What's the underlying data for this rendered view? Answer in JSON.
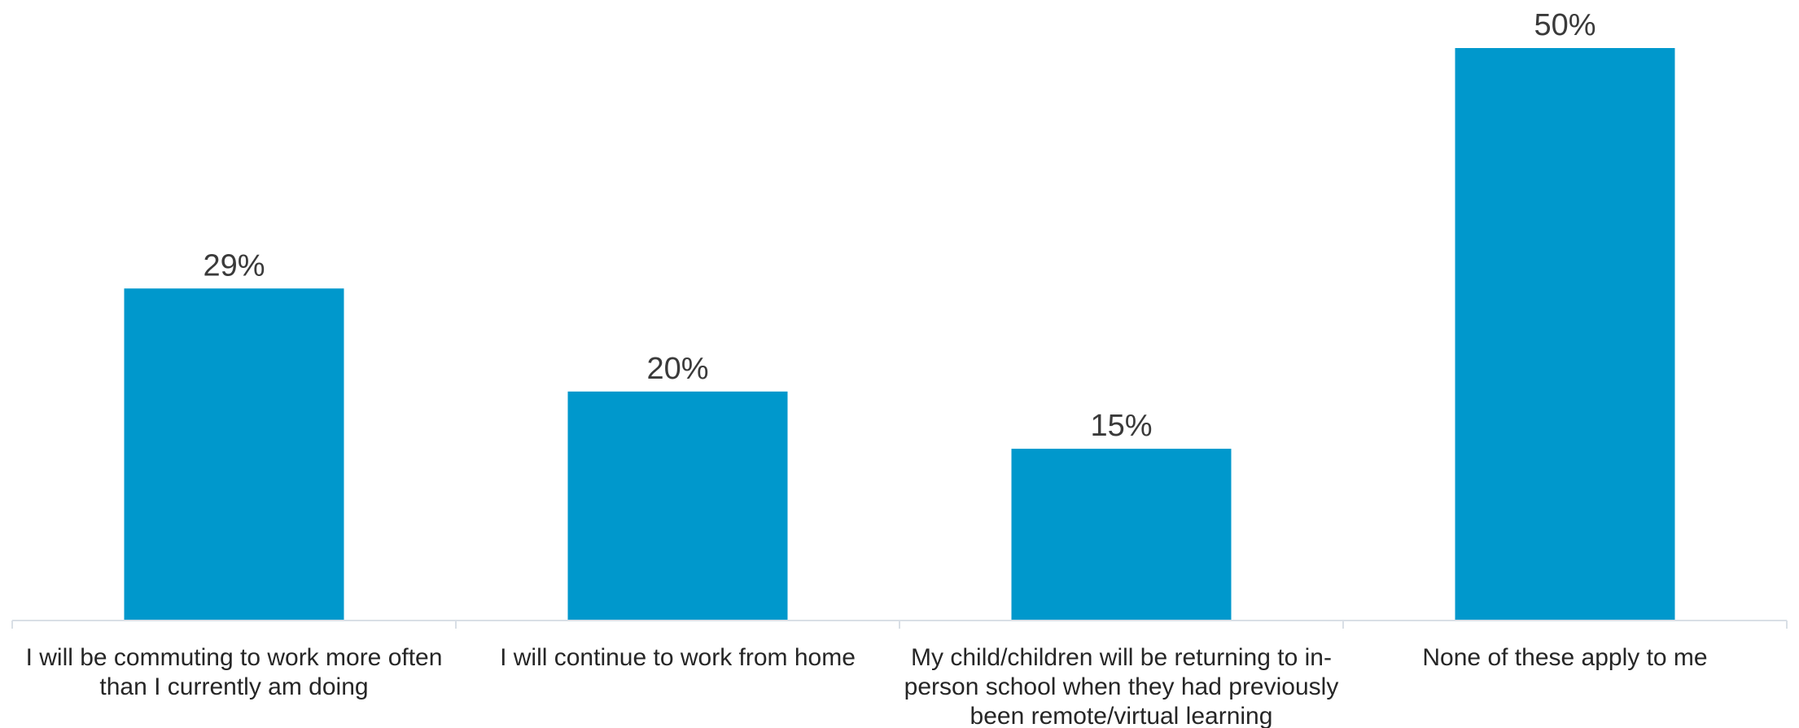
{
  "chart_data": {
    "type": "bar",
    "title": "",
    "xlabel": "",
    "ylabel": "",
    "ylim": [
      0,
      50
    ],
    "grid": false,
    "bar_color": "#0098CC",
    "categories": [
      "I will be commuting to work more often than I currently am doing",
      "I will continue to work from home",
      "My child/children will be returning to in-person school when they had previously been remote/virtual learning",
      "None of these apply to me"
    ],
    "category_lines": [
      [
        "I will be commuting to work more often",
        "than I currently am doing"
      ],
      [
        "I will continue to work from home"
      ],
      [
        "My child/children will be returning to in-",
        "person school when they had previously",
        "been remote/virtual learning"
      ],
      [
        "None of these apply to me"
      ]
    ],
    "values": [
      29,
      20,
      15,
      50
    ],
    "data_labels": [
      "29%",
      "20%",
      "15%",
      "50%"
    ]
  }
}
